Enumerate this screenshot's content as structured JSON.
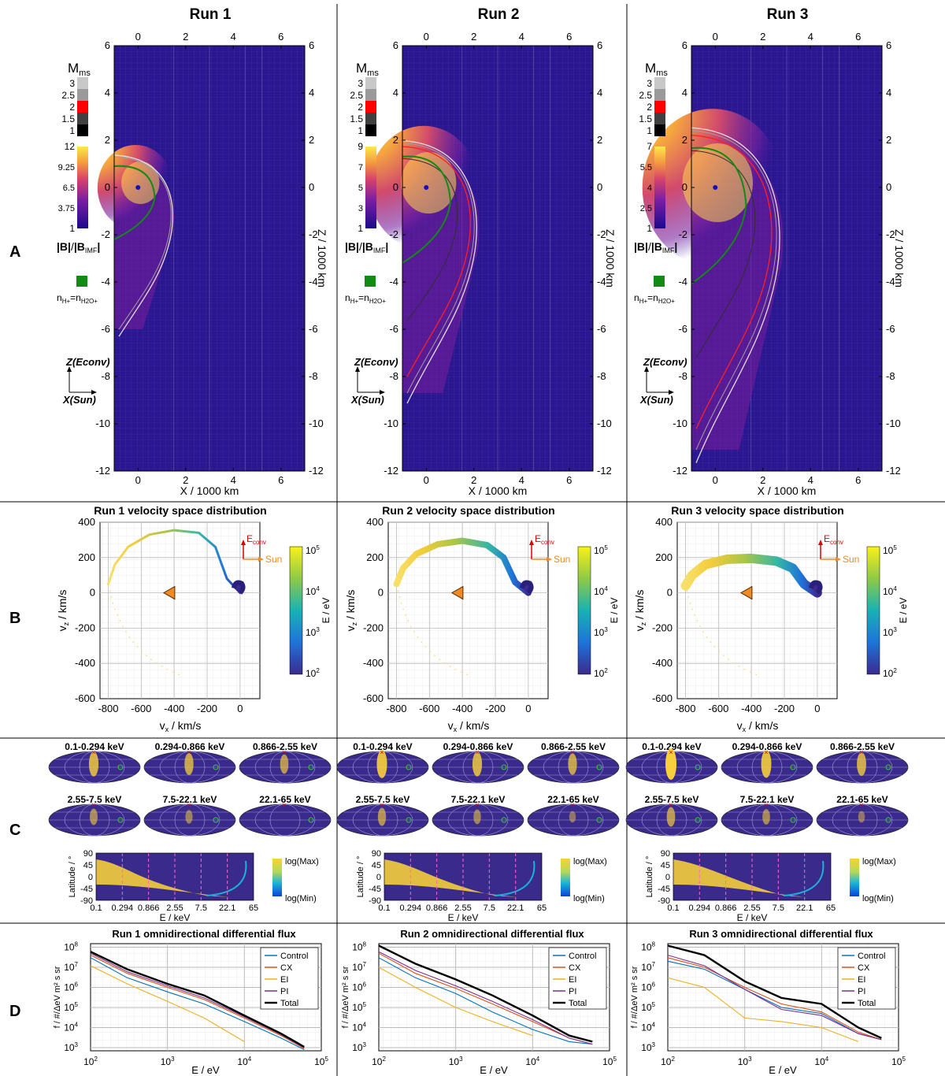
{
  "columns": [
    {
      "title": "Run 1",
      "mms_ticks": [
        "3",
        "2.5",
        "2",
        "1.5",
        "1"
      ],
      "b_ticks": [
        "12",
        "9.25",
        "6.5",
        "3.75",
        "1"
      ],
      "vdist_title": "Run 1 velocity space distribution",
      "flux_title": "Run 1 omnidirectional differential flux"
    },
    {
      "title": "Run 2",
      "mms_ticks": [
        "3",
        "2.5",
        "2",
        "1.5",
        "1"
      ],
      "b_ticks": [
        "9",
        "7",
        "5",
        "3",
        "1"
      ],
      "vdist_title": "Run 2 velocity space distribution",
      "flux_title": "Run 2 omnidirectional differential flux"
    },
    {
      "title": "Run 3",
      "mms_ticks": [
        "3",
        "2.5",
        "2",
        "1.5",
        "1"
      ],
      "b_ticks": [
        "7",
        "5.5",
        "4",
        "2.5",
        "1"
      ],
      "vdist_title": "Run 3 velocity space distribution",
      "flux_title": "Run 3 omnidirectional differential flux"
    }
  ],
  "row_labels": [
    "A",
    "B",
    "C",
    "D"
  ],
  "panel_a": {
    "mms_label": "M",
    "mms_sub": "ms",
    "b_label_num": "|B|",
    "b_label_den": "|B",
    "b_label_den_sub": "IMF",
    "b_label_den_end": "|",
    "n_label": "n",
    "n_sub1": "H+",
    "n_eq": "=n",
    "n_sub2": "H2O+",
    "axis_z": "Z(Econv)",
    "axis_x": "X(Sun)",
    "xlabel": "X / 1000 km",
    "ylabel": "Z / 1000 km",
    "xticks": [
      "0",
      "2",
      "4",
      "6"
    ],
    "yticks": [
      "6",
      "4",
      "2",
      "0",
      "-2",
      "-4",
      "-6",
      "-8",
      "-10",
      "-12"
    ],
    "mms_colors": [
      "#c8c8c8",
      "#9a9a9a",
      "#ff0000",
      "#404040",
      "#000000"
    ],
    "n_color": "#138a13"
  },
  "panel_b": {
    "xlabel": "v",
    "xlabel_sub": "x",
    "xlabel_unit": " / km/s",
    "ylabel": "v",
    "ylabel_sub": "z",
    "ylabel_unit": " / km/s",
    "xticks": [
      "-800",
      "-600",
      "-400",
      "-200",
      "0"
    ],
    "yticks": [
      "400",
      "200",
      "0",
      "-200",
      "-400",
      "-600"
    ],
    "econv": "E",
    "econv_sub": "conv",
    "sun": "Sun",
    "cbar_label": "E / eV",
    "cbar_ticks": [
      "10",
      "10",
      "10",
      "10"
    ],
    "cbar_exps": [
      "5",
      "4",
      "3",
      "2"
    ]
  },
  "panel_c": {
    "bins": [
      "0.1-0.294 keV",
      "0.294-0.866 keV",
      "0.866-2.55 keV",
      "2.55-7.5 keV",
      "7.5-22.1 keV",
      "22.1-65 keV"
    ],
    "lat_label": "Latitude / °",
    "lat_ticks": [
      "90",
      "45",
      "0",
      "-45",
      "-90"
    ],
    "e_ticks": [
      "0.1",
      "0.294",
      "0.866",
      "2.55",
      "7.5",
      "22.1",
      "65"
    ],
    "e_label": "E / keV",
    "cbar_max": "log(Max)",
    "cbar_min": "log(Min)"
  },
  "panel_d": {
    "ylabel": "f / #/ΔeV m² s sr",
    "xlabel": "E / eV",
    "legend": [
      "Control",
      "CX",
      "EI",
      "PI",
      "Total"
    ],
    "legend_colors": [
      "#0072bd",
      "#d95319",
      "#edb120",
      "#7e2f8e",
      "#000000"
    ],
    "xticks": [
      "10",
      "10",
      "10",
      "10"
    ],
    "xexps": [
      "2",
      "3",
      "4",
      "5"
    ],
    "yticks": [
      "10",
      "10",
      "10",
      "10",
      "10",
      "10"
    ],
    "yexps": [
      "8",
      "7",
      "6",
      "5",
      "4",
      "3"
    ]
  },
  "chart_data": [
    {
      "type": "heatmap",
      "title": "Run 1",
      "xlabel": "X / 1000 km",
      "ylabel": "Z / 1000 km",
      "xlim": [
        -1,
        7
      ],
      "ylim": [
        -12,
        6
      ],
      "colorbar": "|B|/|B_IMF|",
      "clim": [
        1,
        12
      ]
    },
    {
      "type": "heatmap",
      "title": "Run 2",
      "xlabel": "X / 1000 km",
      "ylabel": "Z / 1000 km",
      "xlim": [
        -1,
        7
      ],
      "ylim": [
        -12,
        6
      ],
      "colorbar": "|B|/|B_IMF|",
      "clim": [
        1,
        9
      ]
    },
    {
      "type": "heatmap",
      "title": "Run 3",
      "xlabel": "X / 1000 km",
      "ylabel": "Z / 1000 km",
      "xlim": [
        -1,
        7
      ],
      "ylim": [
        -12,
        6
      ],
      "colorbar": "|B|/|B_IMF|",
      "clim": [
        1,
        7
      ]
    },
    {
      "type": "scatter",
      "title": "Run 1 velocity space distribution",
      "xlabel": "v_x / km/s",
      "ylabel": "v_z / km/s",
      "xlim": [
        -850,
        120
      ],
      "ylim": [
        -600,
        400
      ],
      "clim_eV": [
        100,
        100000
      ],
      "arc": {
        "outer": [
          [
            0,
            0
          ],
          [
            -80,
            80
          ],
          [
            -150,
            260
          ],
          [
            -250,
            340
          ],
          [
            -400,
            355
          ],
          [
            -550,
            330
          ],
          [
            -680,
            260
          ],
          [
            -760,
            160
          ],
          [
            -800,
            50
          ]
        ]
      },
      "marker": [
        -430,
        0
      ]
    },
    {
      "type": "scatter",
      "title": "Run 2 velocity space distribution",
      "xlabel": "v_x / km/s",
      "ylabel": "v_z / km/s",
      "xlim": [
        -850,
        120
      ],
      "ylim": [
        -600,
        400
      ],
      "clim_eV": [
        100,
        100000
      ],
      "arc": {
        "outer": [
          [
            0,
            0
          ],
          [
            -80,
            60
          ],
          [
            -150,
            200
          ],
          [
            -250,
            270
          ],
          [
            -400,
            295
          ],
          [
            -550,
            275
          ],
          [
            -680,
            220
          ],
          [
            -760,
            140
          ],
          [
            -800,
            50
          ]
        ]
      },
      "marker": [
        -430,
        0
      ]
    },
    {
      "type": "scatter",
      "title": "Run 3 velocity space distribution",
      "xlabel": "v_x / km/s",
      "ylabel": "v_z / km/s",
      "xlim": [
        -850,
        120
      ],
      "ylim": [
        -600,
        400
      ],
      "clim_eV": [
        100,
        100000
      ],
      "arc": {
        "outer": [
          [
            0,
            0
          ],
          [
            -80,
            50
          ],
          [
            -150,
            140
          ],
          [
            -250,
            180
          ],
          [
            -400,
            195
          ],
          [
            -550,
            190
          ],
          [
            -680,
            160
          ],
          [
            -760,
            100
          ],
          [
            -800,
            40
          ]
        ]
      },
      "marker": [
        -430,
        0
      ]
    },
    {
      "type": "line",
      "title": "Run 1 omnidirectional differential flux",
      "xlabel": "E / eV",
      "ylabel": "f / #/ΔeV m² s sr",
      "xscale": "log",
      "yscale": "log",
      "xlim": [
        100,
        100000
      ],
      "ylim": [
        700,
        150000000
      ],
      "x": [
        100,
        300,
        1000,
        3000,
        10000,
        30000,
        60000
      ],
      "series": [
        {
          "name": "Control",
          "values": [
            30000000,
            3000000,
            600000,
            150000,
            20000,
            3000,
            800
          ]
        },
        {
          "name": "CX",
          "values": [
            40000000,
            5000000,
            1000000,
            250000,
            30000,
            4000,
            900
          ]
        },
        {
          "name": "EI",
          "values": [
            12000000,
            1500000,
            200000,
            30000,
            2000,
            0,
            0
          ]
        },
        {
          "name": "PI",
          "values": [
            50000000,
            6000000,
            1200000,
            300000,
            35000,
            4500,
            1000
          ]
        },
        {
          "name": "Total",
          "values": [
            60000000,
            8000000,
            1500000,
            400000,
            40000,
            5000,
            1100
          ]
        }
      ]
    },
    {
      "type": "line",
      "title": "Run 2 omnidirectional differential flux",
      "xlabel": "E / eV",
      "ylabel": "f / #/ΔeV m² s sr",
      "xscale": "log",
      "yscale": "log",
      "xlim": [
        100,
        100000
      ],
      "ylim": [
        700,
        150000000
      ],
      "x": [
        100,
        300,
        1000,
        3000,
        10000,
        30000,
        60000
      ],
      "series": [
        {
          "name": "Control",
          "values": [
            30000000,
            3000000,
            500000,
            60000,
            8000,
            2000,
            1500
          ]
        },
        {
          "name": "CX",
          "values": [
            50000000,
            5000000,
            900000,
            150000,
            20000,
            3000,
            1500
          ]
        },
        {
          "name": "EI",
          "values": [
            10000000,
            1000000,
            100000,
            20000,
            4000,
            0,
            0
          ]
        },
        {
          "name": "PI",
          "values": [
            60000000,
            7000000,
            1200000,
            200000,
            25000,
            3000,
            1500
          ]
        },
        {
          "name": "Total",
          "values": [
            120000000,
            15000000,
            2500000,
            400000,
            40000,
            4000,
            2000
          ]
        }
      ]
    },
    {
      "type": "line",
      "title": "Run 3 omnidirectional differential flux",
      "xlabel": "E / eV",
      "ylabel": "f / #/ΔeV m² s sr",
      "xscale": "log",
      "yscale": "log",
      "xlim": [
        100,
        100000
      ],
      "ylim": [
        700,
        150000000
      ],
      "x": [
        100,
        300,
        1000,
        3000,
        10000,
        30000,
        60000
      ],
      "series": [
        {
          "name": "Control",
          "values": [
            20000000,
            8000000,
            800000,
            100000,
            50000,
            5000,
            2500
          ]
        },
        {
          "name": "CX",
          "values": [
            30000000,
            10000000,
            1000000,
            150000,
            60000,
            6000,
            2500
          ]
        },
        {
          "name": "EI",
          "values": [
            3000000,
            1000000,
            30000,
            20000,
            10000,
            2000,
            0
          ]
        },
        {
          "name": "PI",
          "values": [
            40000000,
            12000000,
            800000,
            80000,
            40000,
            5000,
            2500
          ]
        },
        {
          "name": "Total",
          "values": [
            120000000,
            40000000,
            2000000,
            300000,
            150000,
            10000,
            3000
          ]
        }
      ]
    }
  ]
}
